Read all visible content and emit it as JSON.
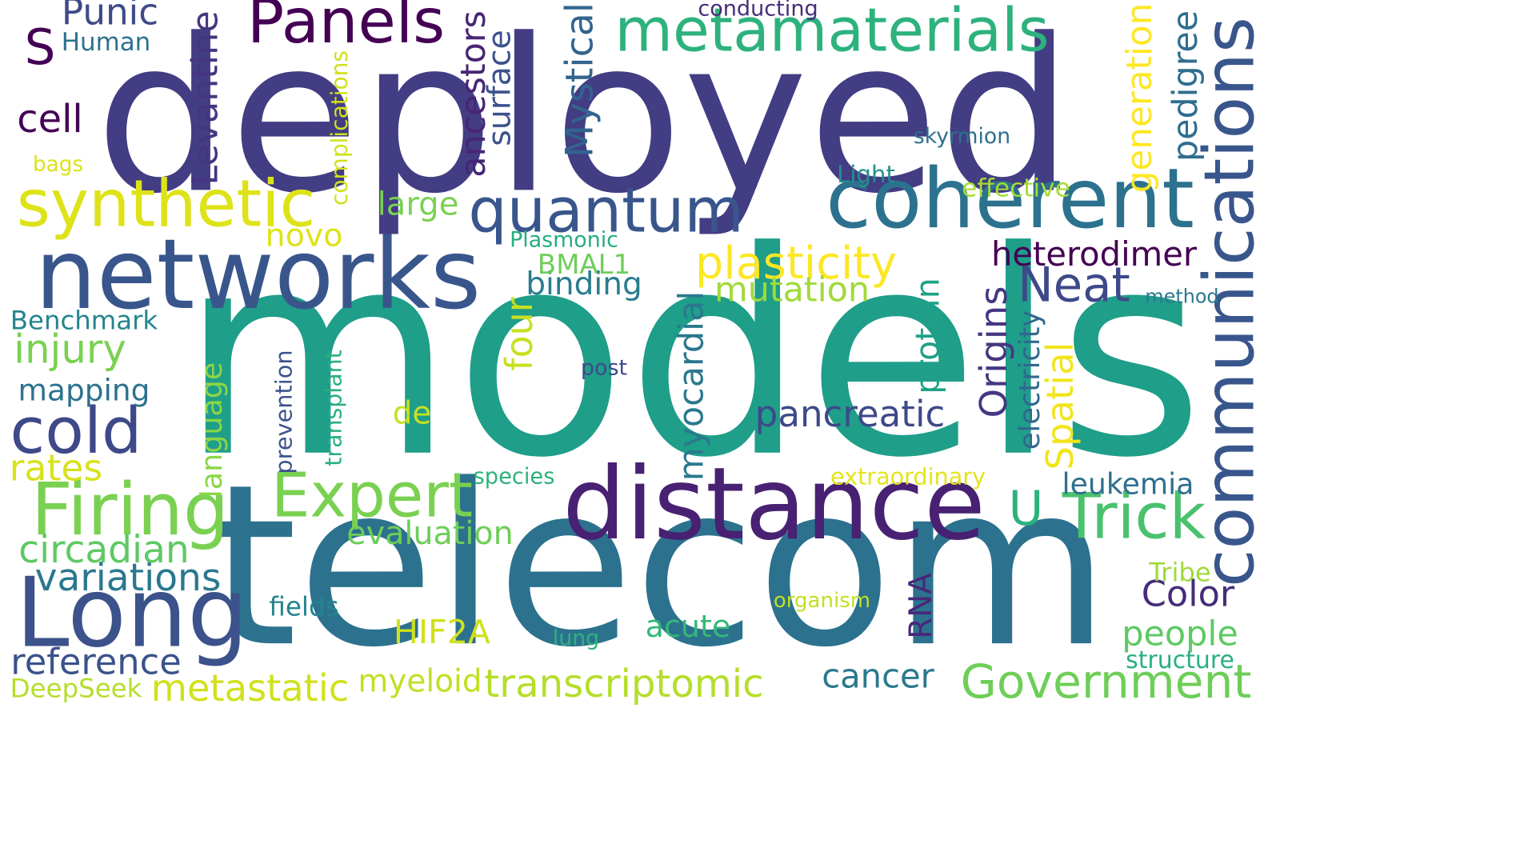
{
  "words": [
    {
      "text": "deployed",
      "color": "#433d84",
      "vertical": false
    },
    {
      "text": "models",
      "color": "#1f9e89",
      "vertical": false
    },
    {
      "text": "telecom",
      "color": "#2c728e",
      "vertical": false
    },
    {
      "text": "communications",
      "color": "#39568c",
      "vertical": true
    },
    {
      "text": "distance",
      "color": "#482173",
      "vertical": false
    },
    {
      "text": "coherent",
      "color": "#2c728e",
      "vertical": false
    },
    {
      "text": "networks",
      "color": "#39568c",
      "vertical": false
    },
    {
      "text": "quantum",
      "color": "#39568c",
      "vertical": false
    },
    {
      "text": "metamaterials",
      "color": "#2db27d",
      "vertical": false
    },
    {
      "text": "synthetic",
      "color": "#dde318",
      "vertical": false
    },
    {
      "text": "Long",
      "color": "#3b528b",
      "vertical": false
    },
    {
      "text": "Panels",
      "color": "#440154",
      "vertical": false
    },
    {
      "text": "Government",
      "color": "#6ece58",
      "vertical": false
    },
    {
      "text": "Firing",
      "color": "#7ad151",
      "vertical": false
    },
    {
      "text": "Expert",
      "color": "#7ad151",
      "vertical": false
    },
    {
      "text": "cold",
      "color": "#3e4989",
      "vertical": false
    },
    {
      "text": "transcriptomic",
      "color": "#b5de2b",
      "vertical": false
    },
    {
      "text": "Neat",
      "color": "#3e4989",
      "vertical": false
    },
    {
      "text": "Trick",
      "color": "#4ac16d",
      "vertical": false
    },
    {
      "text": "metastatic",
      "color": "#d0e11c",
      "vertical": false
    },
    {
      "text": "U",
      "color": "#2db27d",
      "vertical": false
    },
    {
      "text": "pancreatic",
      "color": "#3e4989",
      "vertical": false
    },
    {
      "text": "plasticity",
      "color": "#fde725",
      "vertical": false
    },
    {
      "text": "heterodimer",
      "color": "#440154",
      "vertical": false
    },
    {
      "text": "variations",
      "color": "#2a788e",
      "vertical": false
    },
    {
      "text": "mutation",
      "color": "#a0da39",
      "vertical": false
    },
    {
      "text": "HIF2A",
      "color": "#d0e11c",
      "vertical": false
    },
    {
      "text": "reference",
      "color": "#3b528b",
      "vertical": false
    },
    {
      "text": "evaluation",
      "color": "#6ece58",
      "vertical": false
    },
    {
      "text": "mapping",
      "color": "#2c728e",
      "vertical": false
    },
    {
      "text": "circadian",
      "color": "#5ec962",
      "vertical": false
    },
    {
      "text": "myeloid",
      "color": "#c2df23",
      "vertical": false
    },
    {
      "text": "people",
      "color": "#5ec962",
      "vertical": false
    },
    {
      "text": "Color",
      "color": "#472c7a",
      "vertical": false
    },
    {
      "text": "leukemia",
      "color": "#2e6f8e",
      "vertical": false
    },
    {
      "text": "acute",
      "color": "#35b779",
      "vertical": false
    },
    {
      "text": "binding",
      "color": "#287c8e",
      "vertical": false
    },
    {
      "text": "BMAL1",
      "color": "#6ece58",
      "vertical": false
    },
    {
      "text": "injury",
      "color": "#7ad151",
      "vertical": false
    },
    {
      "text": "Benchmark",
      "color": "#25848e",
      "vertical": false
    },
    {
      "text": "cancer",
      "color": "#2a788e",
      "vertical": false
    },
    {
      "text": "DeepSeek",
      "color": "#b5de2b",
      "vertical": false
    },
    {
      "text": "rates",
      "color": "#d8e219",
      "vertical": false
    },
    {
      "text": "novo",
      "color": "#dde318",
      "vertical": false
    },
    {
      "text": "large",
      "color": "#7ad151",
      "vertical": false
    },
    {
      "text": "de",
      "color": "#c8e020",
      "vertical": false
    },
    {
      "text": "Human",
      "color": "#2c728e",
      "vertical": false
    },
    {
      "text": "Punic",
      "color": "#3e4a89",
      "vertical": false
    },
    {
      "text": "S",
      "color": "#440154",
      "vertical": false
    },
    {
      "text": "cell",
      "color": "#440154",
      "vertical": false
    },
    {
      "text": "bags",
      "color": "#dde318",
      "vertical": false
    },
    {
      "text": "Levantine",
      "color": "#453581",
      "vertical": true
    },
    {
      "text": "ancestors",
      "color": "#482475",
      "vertical": true
    },
    {
      "text": "surface",
      "color": "#3b528b",
      "vertical": true
    },
    {
      "text": "complications",
      "color": "#d0e11c",
      "vertical": true
    },
    {
      "text": "Mystical",
      "color": "#32648e",
      "vertical": true
    },
    {
      "text": "generation",
      "color": "#fde725",
      "vertical": true
    },
    {
      "text": "pedigree",
      "color": "#2e6e8e",
      "vertical": true
    },
    {
      "text": "myocardial",
      "color": "#2a788e",
      "vertical": true
    },
    {
      "text": "four",
      "color": "#c8e020",
      "vertical": true
    },
    {
      "text": "protein",
      "color": "#1fa187",
      "vertical": true
    },
    {
      "text": "Origins",
      "color": "#453781",
      "vertical": true
    },
    {
      "text": "electricity",
      "color": "#31688e",
      "vertical": true
    },
    {
      "text": "Spatial",
      "color": "#f1e51d",
      "vertical": true
    },
    {
      "text": "language",
      "color": "#8bd646",
      "vertical": true
    },
    {
      "text": "prevention",
      "color": "#3b528b",
      "vertical": true
    },
    {
      "text": "transplant",
      "color": "#29af7f",
      "vertical": true
    },
    {
      "text": "RNA",
      "color": "#482878",
      "vertical": true
    },
    {
      "text": "conducting",
      "color": "#472d7b",
      "vertical": false
    },
    {
      "text": "skyrmion",
      "color": "#2e6f8e",
      "vertical": false
    },
    {
      "text": "Light",
      "color": "#21918c",
      "vertical": false
    },
    {
      "text": "effective",
      "color": "#a5db36",
      "vertical": false
    },
    {
      "text": "Plasmonic",
      "color": "#26ad81",
      "vertical": false
    },
    {
      "text": "method",
      "color": "#2a788e",
      "vertical": false
    },
    {
      "text": "post",
      "color": "#3e4989",
      "vertical": false
    },
    {
      "text": "species",
      "color": "#2db27d",
      "vertical": false
    },
    {
      "text": "extraordinary",
      "color": "#e5e419",
      "vertical": false
    },
    {
      "text": "Tribe",
      "color": "#a0da39",
      "vertical": false
    },
    {
      "text": "organism",
      "color": "#c2df23",
      "vertical": false
    },
    {
      "text": "fields",
      "color": "#25848e",
      "vertical": false
    },
    {
      "text": "lung",
      "color": "#2db27d",
      "vertical": false
    },
    {
      "text": "structure",
      "color": "#29af7f",
      "vertical": false
    }
  ]
}
